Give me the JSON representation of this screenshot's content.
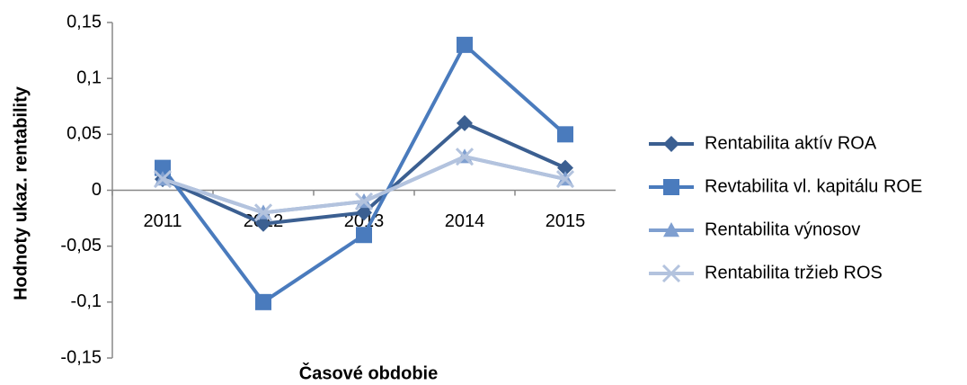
{
  "chart_data": {
    "type": "line",
    "x_label": "Časové obdobie",
    "y_label": "Hodnoty ukaz. rentability",
    "categories": [
      "2011",
      "2012",
      "2013",
      "2014",
      "2015"
    ],
    "series": [
      {
        "name": "Rentabilita aktív ROA",
        "color": "#3b5f91",
        "marker": "diamond",
        "values": [
          0.01,
          -0.03,
          -0.02,
          0.06,
          0.02
        ]
      },
      {
        "name": "Revtabilita vl. kapitálu ROE",
        "color": "#4a7bbd",
        "marker": "square",
        "values": [
          0.02,
          -0.1,
          -0.04,
          0.13,
          0.05
        ]
      },
      {
        "name": "Rentabilita výnosov",
        "color": "#7f9fd0",
        "marker": "triangle",
        "values": [
          0.01,
          -0.02,
          -0.01,
          0.03,
          0.01
        ]
      },
      {
        "name": "Rentabilita tržieb ROS",
        "color": "#b3c3de",
        "marker": "x",
        "values": [
          0.01,
          -0.02,
          -0.01,
          0.03,
          0.01
        ]
      }
    ],
    "ylim": [
      -0.15,
      0.15
    ],
    "yticks": [
      {
        "value": -0.15,
        "label": "-0,15"
      },
      {
        "value": -0.1,
        "label": "-0,1"
      },
      {
        "value": -0.05,
        "label": "-0,05"
      },
      {
        "value": 0,
        "label": "0"
      },
      {
        "value": 0.05,
        "label": "0,05"
      },
      {
        "value": 0.1,
        "label": "0,1"
      },
      {
        "value": 0.15,
        "label": "0,15"
      }
    ],
    "grid": false,
    "legend": "right"
  }
}
